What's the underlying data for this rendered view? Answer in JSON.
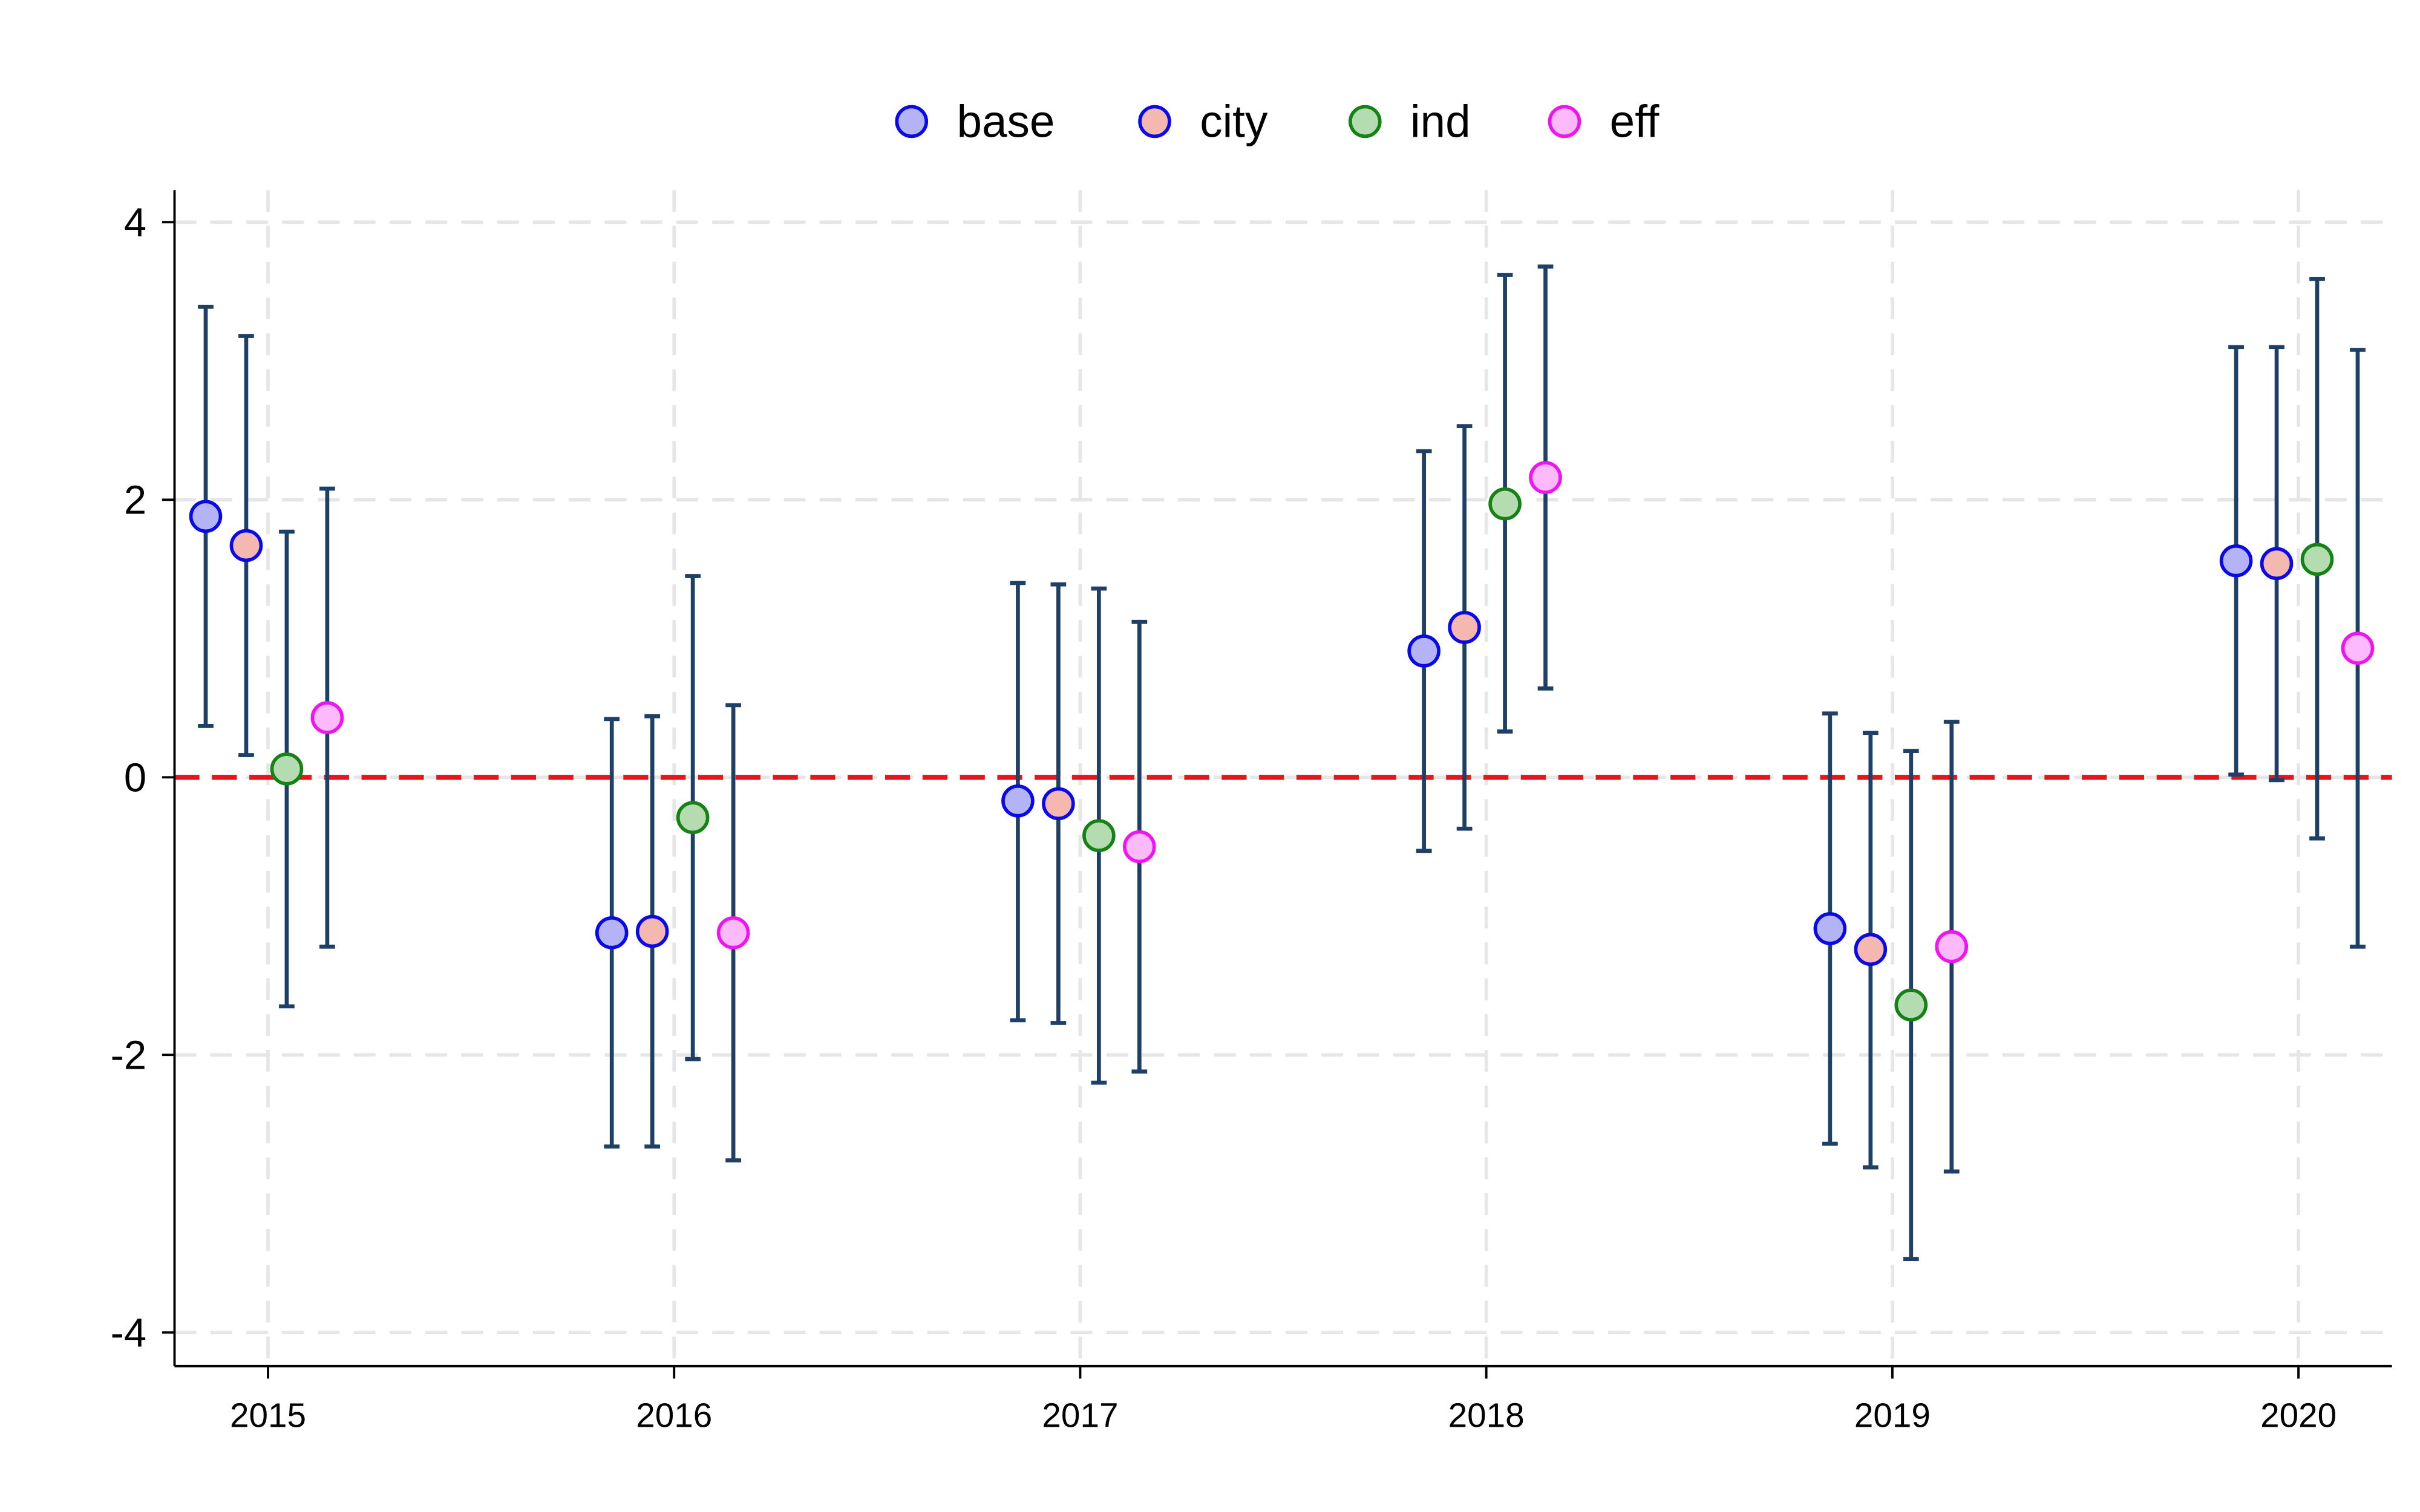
{
  "chart_data": {
    "type": "scatter",
    "subtype": "coefficient plot with confidence intervals",
    "title": "",
    "xlabel": "",
    "ylabel": "",
    "categories": [
      "2015",
      "2016",
      "2017",
      "2018",
      "2019",
      "2020"
    ],
    "ylim": [
      -4.25,
      4.25
    ],
    "yticks": [
      4,
      2,
      0,
      -2,
      -4
    ],
    "ytick_labels": [
      "4",
      "2",
      "0",
      "-2",
      "-4"
    ],
    "grid": true,
    "legend_position": "top",
    "reference_line": {
      "y": 0,
      "color": "#e8141b",
      "style": "dashed"
    },
    "ci_color": "#1f4066",
    "series": [
      {
        "name": "base",
        "fill": "#b3b3f5",
        "edge": "#0a0ae6",
        "values": [
          1.88,
          -1.12,
          -0.17,
          0.91,
          -1.09,
          1.56
        ],
        "ci_low": [
          0.37,
          -2.66,
          -1.75,
          -0.53,
          -2.64,
          0.02
        ],
        "ci_high": [
          3.39,
          0.42,
          1.4,
          2.35,
          0.46,
          3.1
        ]
      },
      {
        "name": "city",
        "fill": "#f5b8b0",
        "edge": "#0a0ae6",
        "values": [
          1.67,
          -1.11,
          -0.19,
          1.08,
          -1.24,
          1.54
        ],
        "ci_low": [
          0.16,
          -2.66,
          -1.77,
          -0.37,
          -2.81,
          -0.02
        ],
        "ci_high": [
          3.18,
          0.44,
          1.39,
          2.53,
          0.32,
          3.1
        ]
      },
      {
        "name": "ind",
        "fill": "#b5dcb0",
        "edge": "#148214",
        "values": [
          0.06,
          -0.29,
          -0.42,
          1.97,
          -1.64,
          1.57
        ],
        "ci_low": [
          -1.65,
          -2.03,
          -2.2,
          0.33,
          -3.47,
          -0.44
        ],
        "ci_high": [
          1.77,
          1.45,
          1.36,
          3.62,
          0.19,
          3.59
        ]
      },
      {
        "name": "eff",
        "fill": "#fcb9fc",
        "edge": "#f014f0",
        "values": [
          0.43,
          -1.12,
          -0.5,
          2.16,
          -1.22,
          0.93
        ],
        "ci_low": [
          -1.22,
          -2.76,
          -2.12,
          0.64,
          -2.84,
          -1.22
        ],
        "ci_high": [
          2.08,
          0.52,
          1.12,
          3.68,
          0.4,
          3.08
        ]
      }
    ]
  }
}
